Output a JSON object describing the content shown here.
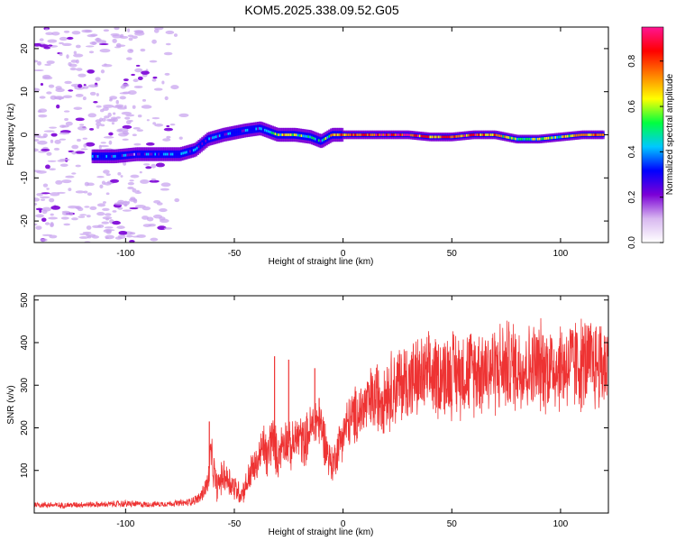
{
  "figure_title": "KOM5.2025.338.09.52.G05",
  "chart_data": [
    {
      "type": "heatmap",
      "xlabel": "Height of straight line (km)",
      "ylabel": "Frequency (Hz)",
      "xlim": [
        -142,
        122
      ],
      "ylim": [
        -25,
        25
      ],
      "xticks": [
        -100,
        -50,
        0,
        50,
        100
      ],
      "yticks": [
        -20,
        -10,
        0,
        10,
        20
      ],
      "colorbar": {
        "label": "Normalized spectral amplitude",
        "range": [
          0,
          0.95
        ],
        "ticks": [
          0.0,
          0.2,
          0.4,
          0.6,
          0.8
        ],
        "colormap": [
          "#ffffff",
          "#d8b8f0",
          "#7b00d6",
          "#0000ff",
          "#00c8ff",
          "#00ff40",
          "#ffff00",
          "#ff8000",
          "#ff0000",
          "#ff1493"
        ]
      },
      "ridge_trace": {
        "x": [
          -115,
          -105,
          -95,
          -85,
          -75,
          -68,
          -62,
          -55,
          -45,
          -38,
          -30,
          -22,
          -15,
          -10,
          -5,
          0,
          10,
          20,
          30,
          40,
          50,
          60,
          70,
          80,
          90,
          100,
          110,
          120
        ],
        "freq": [
          -5,
          -5,
          -4.5,
          -4.5,
          -4.5,
          -3.5,
          -1,
          0,
          1,
          1.5,
          0,
          0,
          -0.5,
          -1.5,
          0,
          0,
          0,
          0,
          0,
          -0.5,
          -0.5,
          0,
          0,
          -1,
          -1,
          -0.5,
          0,
          0
        ],
        "amplitude": [
          0.3,
          0.3,
          0.25,
          0.3,
          0.35,
          0.3,
          0.3,
          0.35,
          0.3,
          0.35,
          0.6,
          0.55,
          0.45,
          0.35,
          0.7,
          0.75,
          0.8,
          0.85,
          0.9,
          0.7,
          0.75,
          0.8,
          0.7,
          0.5,
          0.55,
          0.55,
          0.7,
          0.75
        ]
      },
      "background_noise_extent_km": [
        -142,
        -70
      ]
    },
    {
      "type": "line",
      "xlabel": "Height of straight line (km)",
      "ylabel": "SNR (v/v)",
      "xlim": [
        -142,
        122
      ],
      "ylim": [
        0,
        510
      ],
      "xticks": [
        -100,
        -50,
        0,
        50,
        100
      ],
      "yticks": [
        100,
        200,
        300,
        400,
        500
      ],
      "color": "#ee3333",
      "series": [
        {
          "x": [
            -142,
            -130,
            -120,
            -110,
            -100,
            -90,
            -80,
            -72,
            -66,
            -62,
            -61,
            -58,
            -55,
            -52,
            -50,
            -47,
            -45,
            -42,
            -40,
            -38,
            -36,
            -35,
            -33,
            -30,
            -28,
            -26,
            -24,
            -22,
            -20,
            -18,
            -15,
            -12,
            -10,
            -7,
            -5,
            -2,
            0,
            3,
            6,
            10,
            15,
            20,
            25,
            30,
            35,
            40,
            45,
            50,
            55,
            60,
            65,
            70,
            75,
            80,
            85,
            90,
            95,
            100,
            105,
            110,
            115,
            120
          ],
          "mean": [
            20,
            18,
            20,
            20,
            22,
            20,
            22,
            24,
            35,
            70,
            140,
            60,
            90,
            75,
            60,
            45,
            60,
            100,
            110,
            140,
            160,
            120,
            180,
            130,
            165,
            175,
            150,
            170,
            180,
            165,
            195,
            220,
            205,
            140,
            110,
            160,
            190,
            215,
            230,
            250,
            270,
            285,
            300,
            310,
            315,
            320,
            325,
            330,
            330,
            335,
            340,
            340,
            345,
            345,
            340,
            345,
            345,
            345,
            350,
            350,
            350,
            350
          ],
          "spread": [
            8,
            8,
            8,
            8,
            10,
            8,
            8,
            10,
            15,
            40,
            60,
            40,
            45,
            45,
            40,
            30,
            35,
            55,
            45,
            60,
            70,
            60,
            80,
            60,
            60,
            65,
            60,
            65,
            70,
            65,
            70,
            70,
            70,
            60,
            50,
            60,
            70,
            75,
            80,
            85,
            100,
            105,
            110,
            115,
            110,
            115,
            115,
            120,
            120,
            120,
            125,
            125,
            125,
            125,
            120,
            125,
            125,
            125,
            130,
            130,
            130,
            130
          ]
        }
      ],
      "spikes": [
        {
          "x": -61.5,
          "y": 215
        },
        {
          "x": -31.5,
          "y": 368
        },
        {
          "x": -25,
          "y": 360
        },
        {
          "x": -13,
          "y": 340
        },
        {
          "x": -11,
          "y": 270
        }
      ]
    }
  ]
}
